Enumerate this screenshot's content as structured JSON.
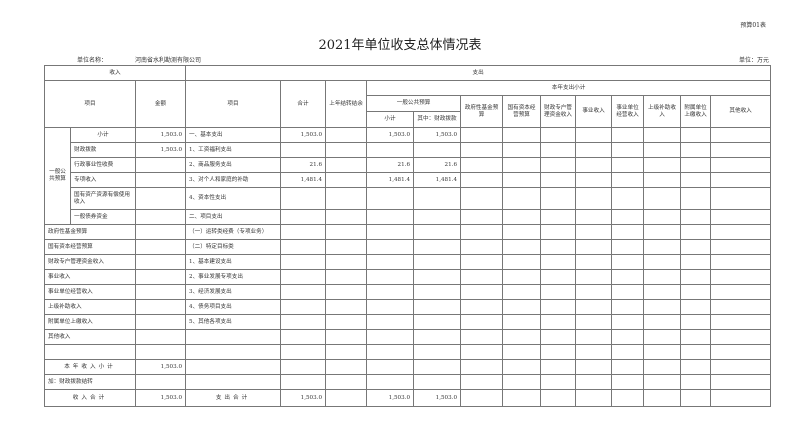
{
  "form_no": "预算01表",
  "title": "2021年单位收支总体情况表",
  "unit_name_label": "单位名称：",
  "unit_name": "河南省水利勘测有限公司",
  "unit": "单位：万元",
  "headers": {
    "income": "收入",
    "expense": "支出",
    "item": "项目",
    "amount": "金额",
    "exp_item": "项目",
    "total": "合计",
    "carryover": "上年结转结余",
    "current_subtotal": "本年支出小计",
    "general_budget": "一般公共预算",
    "subtotal": "小计",
    "fiscal": "其中：财政拨款",
    "gov_fund": "政府性基金预算",
    "state_capital": "国有资本经营预算",
    "fiscal_special": "财政专户管理资金收入",
    "business": "事业收入",
    "business_unit": "事业单位经营收入",
    "superior": "上级补助收入",
    "affiliated": "附属单位上缴收入",
    "other": "其他收入"
  },
  "group_label": "一般公共预算",
  "rows": [
    {
      "label": "小计",
      "amount": "1,503.0",
      "exp": "一、基本支出",
      "total": "1,503.0",
      "carry": "",
      "sub": "1,503.0",
      "fiscal": "1,503.0"
    },
    {
      "label": "财政拨款",
      "amount": "1,503.0",
      "exp": "1、工资福利支出",
      "total": "",
      "carry": "",
      "sub": "",
      "fiscal": ""
    },
    {
      "label": "行政事业性收费",
      "amount": "",
      "exp": "2、商品服务支出",
      "total": "21.6",
      "carry": "",
      "sub": "21.6",
      "fiscal": "21.6"
    },
    {
      "label": "专项收入",
      "amount": "",
      "exp": "3、对个人和家庭的补助",
      "total": "1,481.4",
      "carry": "",
      "sub": "1,481.4",
      "fiscal": "1,481.4"
    },
    {
      "label": "国有资产资源有偿使用收入",
      "amount": "",
      "exp": "4、资本性支出",
      "total": "",
      "carry": "",
      "sub": "",
      "fiscal": ""
    },
    {
      "label": "一般债券资金",
      "amount": "",
      "exp": "二、项目支出",
      "total": "",
      "carry": "",
      "sub": "",
      "fiscal": ""
    },
    {
      "label": "政府性基金预算",
      "amount": "",
      "exp": "（一）运转类经费（专项业务）",
      "total": "",
      "carry": "",
      "sub": "",
      "fiscal": ""
    },
    {
      "label": "国有资本经营预算",
      "amount": "",
      "exp": "（二）特定目标类",
      "total": "",
      "carry": "",
      "sub": "",
      "fiscal": ""
    },
    {
      "label": "财政专户管理资金收入",
      "amount": "",
      "exp": "1、基本建设支出",
      "total": "",
      "carry": "",
      "sub": "",
      "fiscal": ""
    },
    {
      "label": "事业收入",
      "amount": "",
      "exp": "2、事业发展专项支出",
      "total": "",
      "carry": "",
      "sub": "",
      "fiscal": ""
    },
    {
      "label": "事业单位经营收入",
      "amount": "",
      "exp": "3、经济发展支出",
      "total": "",
      "carry": "",
      "sub": "",
      "fiscal": ""
    },
    {
      "label": "上级补助收入",
      "amount": "",
      "exp": "4、债务项目支出",
      "total": "",
      "carry": "",
      "sub": "",
      "fiscal": ""
    },
    {
      "label": "附属单位上缴收入",
      "amount": "",
      "exp": "5、其他各项支出",
      "total": "",
      "carry": "",
      "sub": "",
      "fiscal": ""
    },
    {
      "label": "其他收入",
      "amount": "",
      "exp": "",
      "total": "",
      "carry": "",
      "sub": "",
      "fiscal": ""
    },
    {
      "label": "",
      "amount": "",
      "exp": "",
      "total": "",
      "carry": "",
      "sub": "",
      "fiscal": ""
    },
    {
      "label": "本年收入小计",
      "amount": "1,503.0",
      "exp": "",
      "total": "",
      "carry": "",
      "sub": "",
      "fiscal": ""
    },
    {
      "label": "加：财政拨款结转",
      "amount": "",
      "exp": "",
      "total": "",
      "carry": "",
      "sub": "",
      "fiscal": ""
    },
    {
      "label": "收入合计",
      "amount": "1,503.0",
      "exp": "支出合计",
      "total": "1,503.0",
      "carry": "",
      "sub": "1,503.0",
      "fiscal": "1,503.0"
    }
  ]
}
